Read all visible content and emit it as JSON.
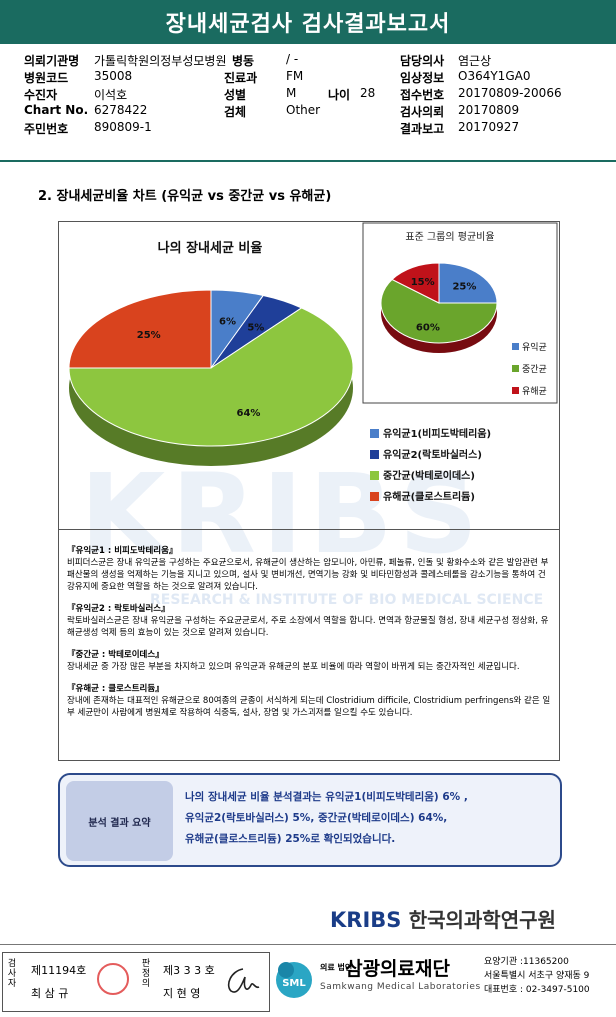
{
  "title": "장내세균검사 검사결과보고서",
  "info": {
    "col1": [
      {
        "label": "의뢰기관명",
        "value": "가톨릭학원의정부성모병원"
      },
      {
        "label": "병원코드",
        "value": "35008"
      },
      {
        "label": "수진자",
        "value": "이석호"
      },
      {
        "label": "Chart No.",
        "value": "6278422"
      },
      {
        "label": "주민번호",
        "value": "890809-1"
      }
    ],
    "col2": [
      {
        "label": "병동",
        "value": "/ -"
      },
      {
        "label": "진료과",
        "value": "FM"
      },
      {
        "label": "성별",
        "value": "M"
      },
      {
        "label": "검체",
        "value": "Other"
      }
    ],
    "age": {
      "label": "나이",
      "value": "28"
    },
    "col3": [
      {
        "label": "담당의사",
        "value": "염근상"
      },
      {
        "label": "임상정보",
        "value": "O364Y1GA0"
      },
      {
        "label": "접수번호",
        "value": "20170809-20066"
      },
      {
        "label": "검사의뢰",
        "value": "20170809"
      },
      {
        "label": "결과보고",
        "value": "20170927"
      }
    ]
  },
  "section_title": "2. 장내세균비율 차트 (유익균 vs 중간균 vs 유해균)",
  "chart_data": [
    {
      "type": "pie",
      "title": "나의 장내세균 비율",
      "categories": [
        "유익균1(비피도박테리움)",
        "유익균2(락토바실러스)",
        "중간균(박테로이데스)",
        "유해균(클로스트리듐)"
      ],
      "values": [
        6,
        5,
        64,
        25
      ],
      "labels": [
        "6%",
        "5%",
        "64%",
        "25%"
      ],
      "colors": [
        "#4a7ec9",
        "#1f3f99",
        "#8dc63f",
        "#d9431e"
      ],
      "legend": "bottom-right"
    },
    {
      "type": "pie",
      "title": "표준 그룹의 평균비율",
      "categories": [
        "유익균",
        "중간균",
        "유해균"
      ],
      "values": [
        25,
        60,
        15
      ],
      "labels": [
        "25%",
        "60%",
        "15%"
      ],
      "colors": [
        "#4a7ec9",
        "#6aa52c",
        "#c0121a"
      ],
      "legend": "right"
    }
  ],
  "watermark": {
    "text": "KRIBS",
    "subtext": "RESEARCH & INSTITUTE OF BIO MEDICAL SCIENCE"
  },
  "descriptions": [
    {
      "head": "『유익균1 : 비피도박테리움』",
      "body": "비피더스균은 장내 유익균을 구성하는 주요균으로서, 유해균이 생산하는 암모니아, 아민류, 페놀류, 인돌 및 황화수소와 같은 발암관련 부패산물의 생성을 억제하는 기능을 지니고 있으며, 설사 및 변비개선, 면역기능 강화 및 비타민합성과 콜레스테롤을 감소기능을 통하여 건강유지에 중요한 역할을 하는 것으로 알려져 있습니다."
    },
    {
      "head": "『유익균2 : 락토바실러스』",
      "body": "락토바실러스균은 장내 유익균을 구성하는 주요균균로서, 주로 소장에서 역할을 합니다. 면역과 항균물질 형성, 장내 세균구성 정상화, 유해균생성 억제 등의 효능이 있는 것으로 알려져 있습니다."
    },
    {
      "head": "『중간균 : 박테로이데스』",
      "body": "장내세균 중 가장 많은 부분을 차지하고 있으며 유익균과 유해균의 분포 비율에 따라 역할이 바뀌게 되는 중간자적인 세균입니다."
    },
    {
      "head": "『유해균 : 클로스트리듐』",
      "body": "장내에 존재하는 대표적인 유해균으로 80여종의 균종이 서식하게 되는데 Clostridium difficile, Clostridium perfringens와 같은 일부 세균만이 사람에게 병원체로 작용하여 식중독, 설사, 장염 및 가스괴저를 일으킬 수도 있습니다."
    }
  ],
  "summary": {
    "label": "분석 결과 요약",
    "line1": "나의 장내세균 비율 분석결과는 유익균1(비피도박테리움) 6% ,",
    "line2": "유익균2(락토바실러스) 5%,  중간균(박테로이데스) 64%,",
    "line3": "유해균(클로스트리듐) 25%로 확인되었습니다."
  },
  "footer": {
    "kriss_logo": "KRIBS",
    "kriss_name": "한국의과학연구원",
    "sig1_vertical": "검사자",
    "sig1_no": "제11194호",
    "sig1_name": "최 삼 규",
    "sig2_vertical": "판정의",
    "sig2_no": "제3 3 3 호",
    "sig2_name": "지 현 영",
    "sml_small": "의료 법인",
    "sml_name": "삼광의료재단",
    "sml_en": "Samkwang Medical Laboratories",
    "addr1": "요양기관 :11365200",
    "addr2": "서울특별시 서초구 양재동 9",
    "addr3": "대표번호 : 02-3497-5100",
    "sml_logo_text": "SML"
  }
}
